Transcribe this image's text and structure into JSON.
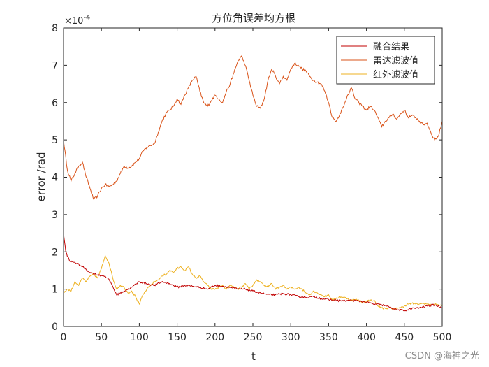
{
  "chart_data": {
    "type": "line",
    "title": "方位角误差均方根",
    "xlabel": "t",
    "ylabel": "error /rad",
    "y_exponent_label": "×10",
    "y_exponent_power": "-4",
    "xlim": [
      0,
      500
    ],
    "ylim": [
      0,
      8
    ],
    "x_ticks": [
      "0",
      "50",
      "100",
      "150",
      "200",
      "250",
      "300",
      "350",
      "400",
      "450",
      "500"
    ],
    "y_ticks": [
      "0",
      "1",
      "2",
      "3",
      "4",
      "5",
      "6",
      "7",
      "8"
    ],
    "grid": false,
    "legend_position": "top-right",
    "series": [
      {
        "name": "融合结果",
        "color": "#c00000",
        "x": [
          0,
          3,
          8,
          15,
          25,
          35,
          45,
          55,
          62,
          70,
          80,
          90,
          100,
          110,
          120,
          130,
          140,
          150,
          160,
          170,
          180,
          190,
          200,
          210,
          220,
          230,
          240,
          250,
          260,
          270,
          280,
          290,
          300,
          310,
          320,
          330,
          340,
          350,
          360,
          370,
          380,
          390,
          400,
          410,
          420,
          430,
          440,
          450,
          460,
          470,
          480,
          490,
          500
        ],
        "values": [
          2.5,
          2.0,
          1.75,
          1.72,
          1.6,
          1.45,
          1.38,
          1.35,
          1.2,
          0.85,
          0.95,
          1.05,
          1.2,
          1.15,
          1.1,
          1.2,
          1.15,
          1.05,
          1.1,
          1.08,
          1.05,
          1.0,
          1.1,
          1.08,
          1.05,
          1.0,
          1.0,
          0.95,
          0.9,
          0.85,
          0.85,
          0.88,
          0.85,
          0.8,
          0.78,
          0.8,
          0.75,
          0.72,
          0.7,
          0.68,
          0.7,
          0.68,
          0.65,
          0.6,
          0.58,
          0.52,
          0.45,
          0.42,
          0.48,
          0.5,
          0.55,
          0.58,
          0.5
        ]
      },
      {
        "name": "雷达滤波值",
        "color": "#d95319",
        "x": [
          0,
          5,
          10,
          15,
          20,
          25,
          30,
          35,
          40,
          45,
          50,
          55,
          60,
          65,
          70,
          75,
          80,
          85,
          90,
          95,
          100,
          105,
          110,
          115,
          120,
          125,
          130,
          135,
          140,
          145,
          150,
          155,
          160,
          165,
          170,
          175,
          180,
          185,
          190,
          195,
          200,
          205,
          210,
          215,
          220,
          225,
          230,
          235,
          240,
          245,
          250,
          255,
          260,
          265,
          270,
          275,
          280,
          285,
          290,
          295,
          300,
          305,
          310,
          315,
          320,
          325,
          330,
          335,
          340,
          345,
          350,
          355,
          360,
          365,
          370,
          375,
          380,
          385,
          390,
          395,
          400,
          405,
          410,
          415,
          420,
          425,
          430,
          435,
          440,
          445,
          450,
          455,
          460,
          465,
          470,
          475,
          480,
          485,
          490,
          495,
          500
        ],
        "values": [
          5.0,
          4.2,
          3.9,
          4.1,
          4.3,
          4.4,
          4.0,
          3.7,
          3.4,
          3.5,
          3.7,
          3.8,
          3.75,
          3.8,
          3.9,
          4.1,
          4.3,
          4.25,
          4.3,
          4.4,
          4.5,
          4.7,
          4.8,
          4.85,
          4.9,
          5.2,
          5.5,
          5.7,
          5.8,
          5.9,
          6.1,
          5.95,
          6.2,
          6.4,
          6.6,
          6.7,
          6.3,
          6.0,
          5.9,
          6.05,
          6.2,
          6.1,
          6.0,
          6.3,
          6.5,
          6.8,
          7.1,
          7.25,
          7.0,
          6.6,
          6.2,
          5.9,
          5.85,
          6.1,
          6.6,
          6.9,
          6.7,
          6.5,
          6.7,
          6.6,
          6.9,
          7.05,
          7.0,
          6.9,
          6.85,
          6.7,
          6.6,
          6.55,
          6.5,
          6.3,
          6.0,
          5.6,
          5.5,
          5.7,
          5.9,
          6.2,
          6.4,
          6.1,
          6.0,
          5.9,
          5.8,
          5.9,
          5.8,
          5.6,
          5.35,
          5.5,
          5.6,
          5.7,
          5.55,
          5.7,
          5.8,
          5.6,
          5.65,
          5.6,
          5.5,
          5.4,
          5.45,
          5.2,
          5.0,
          5.1,
          5.5
        ]
      },
      {
        "name": "红外滤波值",
        "color": "#edb120",
        "x": [
          0,
          5,
          10,
          15,
          20,
          25,
          30,
          35,
          40,
          45,
          50,
          55,
          60,
          65,
          70,
          75,
          80,
          85,
          90,
          95,
          100,
          105,
          110,
          115,
          120,
          125,
          130,
          135,
          140,
          145,
          150,
          155,
          160,
          165,
          170,
          175,
          180,
          185,
          190,
          195,
          200,
          205,
          210,
          215,
          220,
          225,
          230,
          235,
          240,
          245,
          250,
          255,
          260,
          265,
          270,
          275,
          280,
          285,
          290,
          295,
          300,
          305,
          310,
          315,
          320,
          325,
          330,
          335,
          340,
          345,
          350,
          355,
          360,
          365,
          370,
          375,
          380,
          385,
          390,
          395,
          400,
          405,
          410,
          415,
          420,
          425,
          430,
          435,
          440,
          445,
          450,
          455,
          460,
          465,
          470,
          475,
          480,
          485,
          490,
          495,
          500
        ],
        "values": [
          0.9,
          1.0,
          0.95,
          1.2,
          1.1,
          1.3,
          1.2,
          1.35,
          1.4,
          1.3,
          1.55,
          1.9,
          1.7,
          1.3,
          1.0,
          1.1,
          1.05,
          0.9,
          0.95,
          0.8,
          0.6,
          0.85,
          1.0,
          1.1,
          1.2,
          1.25,
          1.35,
          1.4,
          1.5,
          1.45,
          1.55,
          1.6,
          1.5,
          1.6,
          1.4,
          1.3,
          1.35,
          1.2,
          1.1,
          1.0,
          1.0,
          1.05,
          1.1,
          1.0,
          1.1,
          1.05,
          1.0,
          1.05,
          1.15,
          1.0,
          1.1,
          1.25,
          1.2,
          1.1,
          1.05,
          1.15,
          1.0,
          1.05,
          1.1,
          1.0,
          1.05,
          1.0,
          1.05,
          1.0,
          0.9,
          0.85,
          0.95,
          0.9,
          0.85,
          0.8,
          0.85,
          0.7,
          0.75,
          0.8,
          0.78,
          0.75,
          0.7,
          0.72,
          0.7,
          0.65,
          0.68,
          0.7,
          0.7,
          0.55,
          0.5,
          0.48,
          0.5,
          0.45,
          0.5,
          0.5,
          0.55,
          0.6,
          0.62,
          0.6,
          0.6,
          0.62,
          0.6,
          0.58,
          0.6,
          0.58,
          0.55
        ]
      }
    ]
  },
  "watermark": "CSDN @海神之光"
}
